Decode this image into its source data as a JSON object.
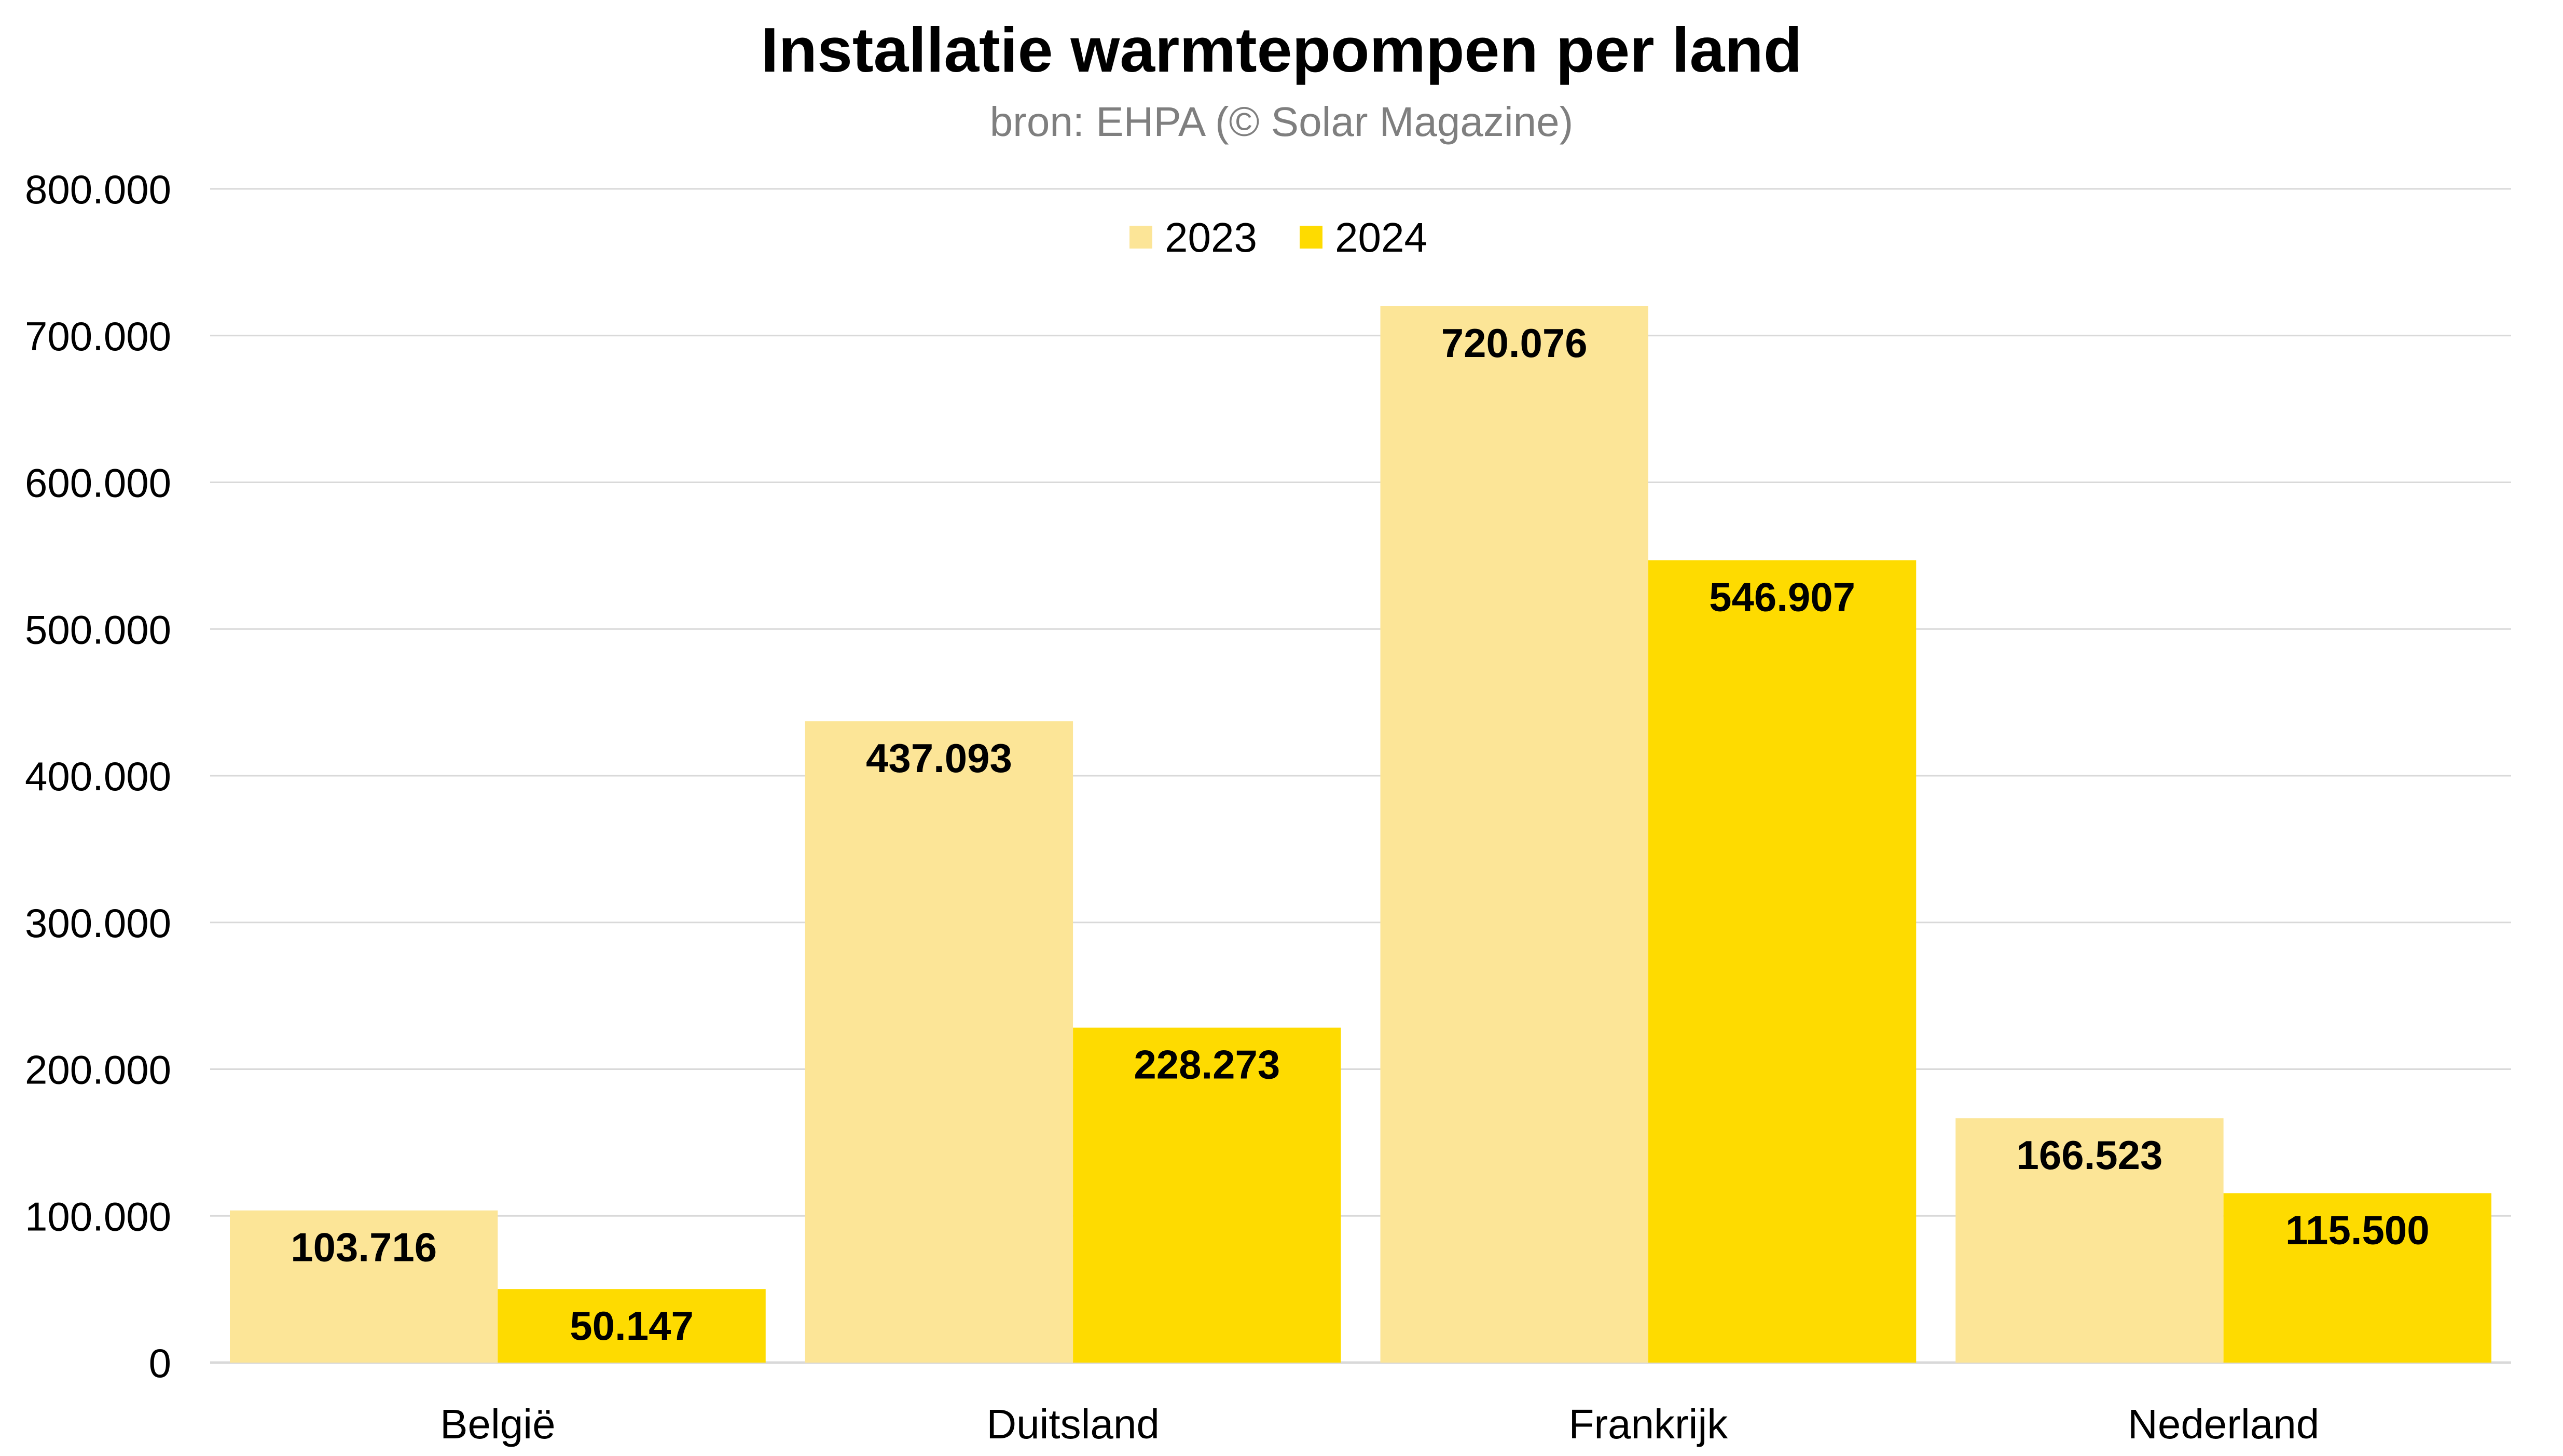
{
  "chart_data": {
    "type": "bar",
    "title": "Installatie warmtepompen per land",
    "subtitle": "bron: EHPA (© Solar Magazine)",
    "categories": [
      "België",
      "Duitsland",
      "Frankrijk",
      "Nederland"
    ],
    "series": [
      {
        "name": "2023",
        "color": "#FCE597",
        "values": [
          103716,
          437093,
          720076,
          166523
        ],
        "labels": [
          "103.716",
          "437.093",
          "720.076",
          "166.523"
        ]
      },
      {
        "name": "2024",
        "color": "#FEDB00",
        "values": [
          50147,
          228273,
          546907,
          115500
        ],
        "labels": [
          "50.147",
          "228.273",
          "546.907",
          "115.500"
        ]
      }
    ],
    "ylim": [
      0,
      800000
    ],
    "yticks": [
      0,
      100000,
      200000,
      300000,
      400000,
      500000,
      600000,
      700000,
      800000
    ],
    "ytick_labels": [
      "0",
      "100.000",
      "200.000",
      "300.000",
      "400.000",
      "500.000",
      "600.000",
      "700.000",
      "800.000"
    ],
    "xlabel": "",
    "ylabel": "",
    "grid": true,
    "legend_position": "top-center",
    "gridline_color": "#d9d9d9",
    "axis_line_color": "#d9d9d9"
  }
}
